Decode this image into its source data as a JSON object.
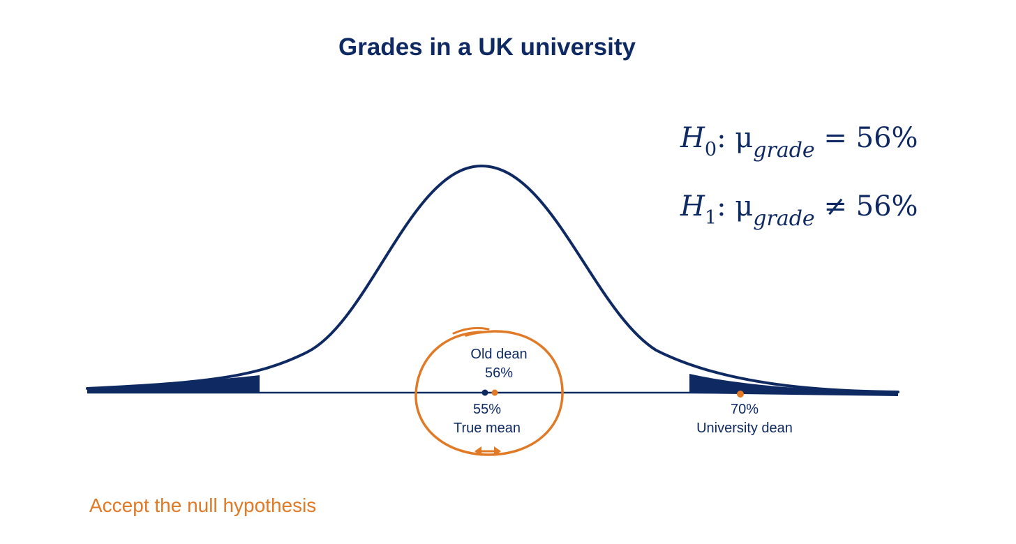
{
  "title": "Grades in a UK university",
  "hypotheses": {
    "h0": {
      "symbol": "H",
      "index": "0",
      "mu": "μ",
      "subscript": "grade",
      "relation": "=",
      "value": "56%"
    },
    "h1": {
      "symbol": "H",
      "index": "1",
      "mu": "μ",
      "subscript": "grade",
      "relation": "≠",
      "value": "56%"
    }
  },
  "labels": {
    "old_dean_name": "Old dean",
    "old_dean_value": "56%",
    "true_mean_value": "55%",
    "true_mean_name": "True mean",
    "university_dean_value": "70%",
    "university_dean_name": "University dean"
  },
  "footer": "Accept the null hypothesis",
  "colors": {
    "navy": "#0f2a63",
    "orange": "#e07a26"
  },
  "distribution": {
    "type": "normal",
    "mean": 55,
    "tails": "two-sided"
  }
}
